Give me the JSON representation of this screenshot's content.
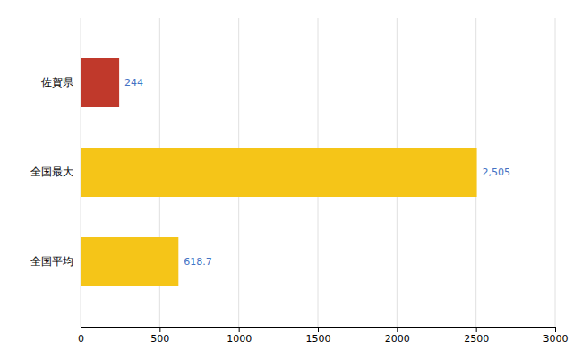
{
  "chart_data": {
    "type": "bar",
    "orientation": "horizontal",
    "categories": [
      "全国平均",
      "全国最大",
      "佐賀県"
    ],
    "values": [
      618.7,
      2505,
      244
    ],
    "value_labels": [
      "618.7",
      "2,505",
      "244"
    ],
    "colors": [
      "#F5C518",
      "#F5C518",
      "#C0392B"
    ],
    "xlim": [
      0,
      3000
    ],
    "xticks": [
      0,
      500,
      1000,
      1500,
      2000,
      2500,
      3000
    ],
    "grid": true,
    "data_labels": true
  }
}
